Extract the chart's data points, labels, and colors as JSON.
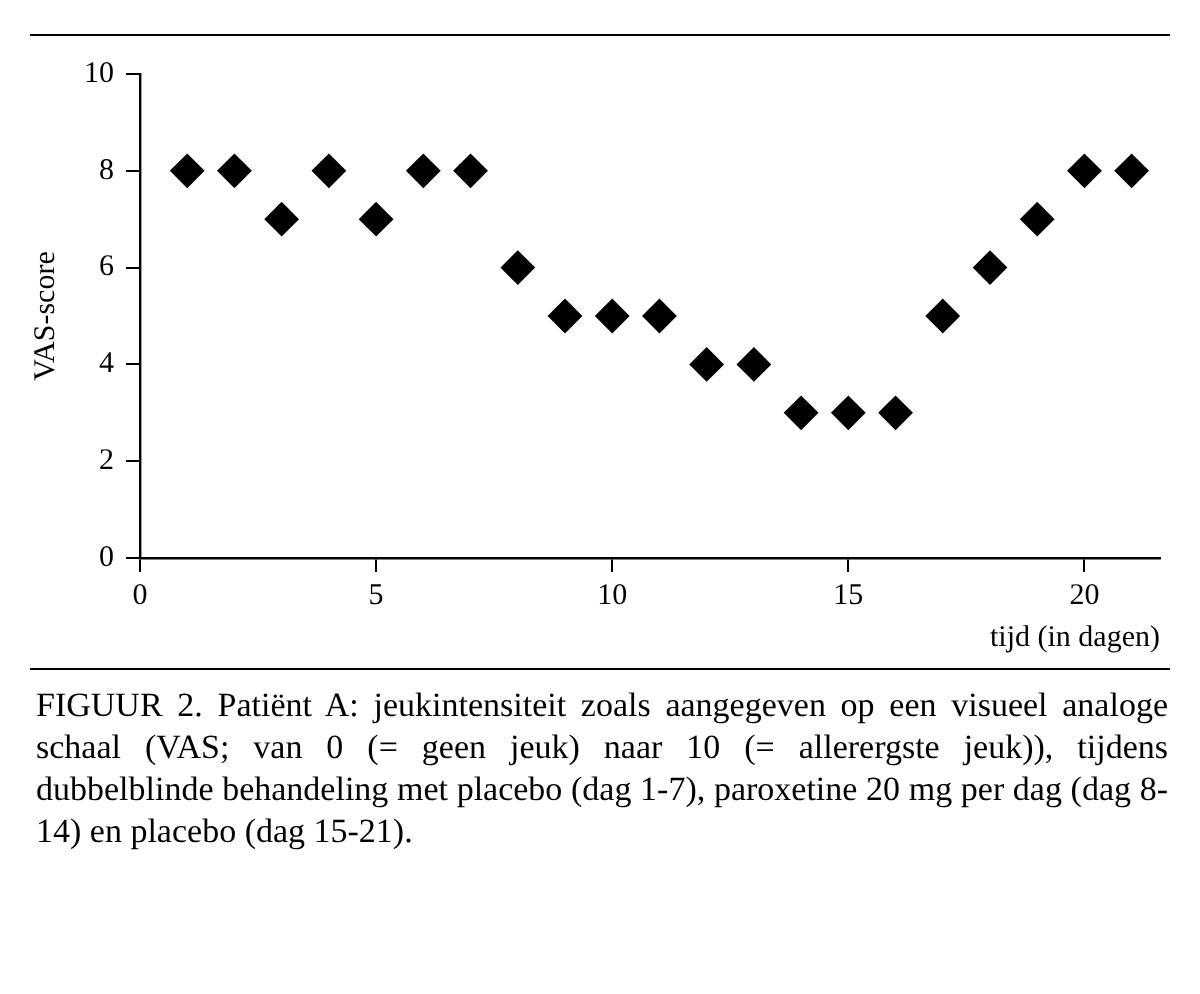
{
  "chart_data": {
    "type": "scatter",
    "xlabel": "tijd (in dagen)",
    "ylabel": "VAS-score",
    "x": [
      1,
      2,
      3,
      4,
      5,
      6,
      7,
      8,
      9,
      10,
      11,
      12,
      13,
      14,
      15,
      16,
      17,
      18,
      19,
      20,
      21
    ],
    "values": [
      8,
      8,
      7,
      8,
      7,
      8,
      8,
      6,
      5,
      5,
      5,
      4,
      4,
      3,
      3,
      3,
      5,
      6,
      7,
      8,
      8
    ],
    "color": "#000000",
    "marker": "diamond",
    "grid": false,
    "xlim": [
      0,
      21.6
    ],
    "xticks": [
      0,
      5,
      10,
      15,
      20
    ],
    "ylim": [
      0,
      10
    ],
    "yticks": [
      0,
      2,
      4,
      6,
      8,
      10
    ],
    "annotations": [
      "FIGUUR 2. Patiënt A: jeukintensiteit zoals aangegeven op een visueel analoge schaal (VAS; van 0 (= geen jeuk) naar 10 (= allerergste jeuk)), tijdens dubbelblinde behandeling met placebo (dag 1-7), paroxetine 20 mg per dag (dag 8-14) en placebo (dag 15-21)."
    ]
  }
}
